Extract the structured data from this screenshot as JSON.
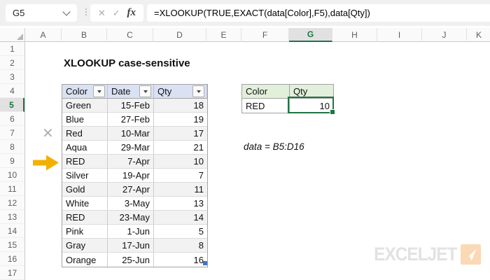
{
  "formula_bar": {
    "name_box": "G5",
    "cancel": "✕",
    "confirm": "✓",
    "fx": "fx",
    "formula": "=XLOOKUP(TRUE,EXACT(data[Color],F5),data[Qty])"
  },
  "grid": {
    "col_letters": [
      "A",
      "B",
      "C",
      "D",
      "E",
      "F",
      "G",
      "H",
      "I",
      "J",
      "K"
    ],
    "row_numbers": [
      "1",
      "2",
      "3",
      "4",
      "5",
      "6",
      "7",
      "8",
      "9",
      "10",
      "11",
      "12",
      "13",
      "14",
      "15",
      "16",
      "17"
    ],
    "selected_col": "G",
    "selected_row": "5"
  },
  "content": {
    "title": "XLOOKUP case-sensitive",
    "annotation": "data = B5:D16"
  },
  "main_table": {
    "headers": [
      "Color",
      "Date",
      "Qty"
    ],
    "rows": [
      [
        "Green",
        "15-Feb",
        "18"
      ],
      [
        "Blue",
        "27-Feb",
        "19"
      ],
      [
        "Red",
        "10-Mar",
        "17"
      ],
      [
        "Aqua",
        "29-Mar",
        "21"
      ],
      [
        "RED",
        "7-Apr",
        "10"
      ],
      [
        "Silver",
        "19-Apr",
        "7"
      ],
      [
        "Gold",
        "27-Apr",
        "11"
      ],
      [
        "White",
        "3-May",
        "13"
      ],
      [
        "RED",
        "23-May",
        "14"
      ],
      [
        "Pink",
        "1-Jun",
        "5"
      ],
      [
        "Gray",
        "17-Jun",
        "8"
      ],
      [
        "Orange",
        "25-Jun",
        "16"
      ]
    ]
  },
  "lookup_table": {
    "headers": [
      "Color",
      "Qty"
    ],
    "rows": [
      [
        "RED",
        "10"
      ]
    ]
  },
  "markers": {
    "x_mark": "✕"
  },
  "logo": {
    "text": "EXCELJET"
  },
  "colors": {
    "selection_green": "#217346",
    "main_header_fill": "#D9E1F2",
    "lookup_header_fill": "#E2EFDA",
    "band_fill": "#F2F2F2",
    "arrow_gold": "#F2B100",
    "x_gray": "#B0B0B0",
    "logo_text_gray": "#E2E2E2",
    "logo_square_orange": "#FBD9B4",
    "table_handle_blue": "#4472C4"
  }
}
